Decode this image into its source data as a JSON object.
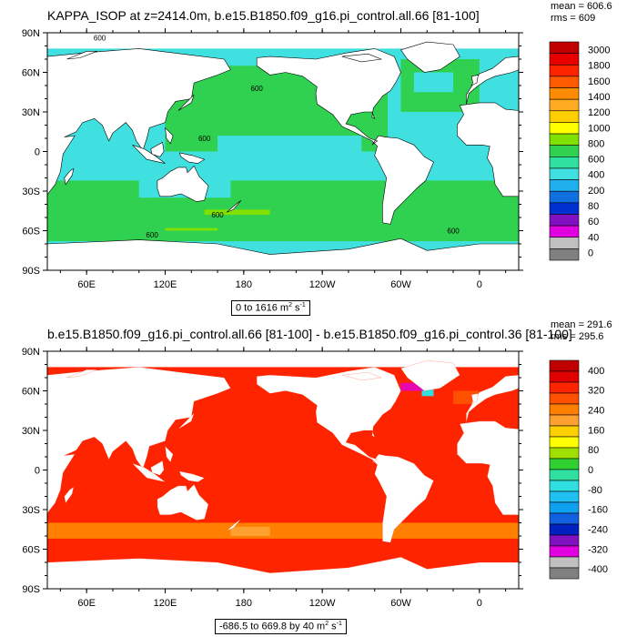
{
  "chart_data": [
    {
      "type": "heatmap",
      "title": "KAPPA_ISOP at z=2414.0m, b.e15.B1850.f09_g16.pi_control.all.66 [81-100]",
      "stats": "mean = 606.6\nrms = 609",
      "range_label": "0 to 1616 m",
      "units_exp": "2",
      "units_tail": " s",
      "units_tail_exp": "-1",
      "lat_ticks": [
        {
          "v": 90,
          "label": "90N"
        },
        {
          "v": 60,
          "label": "60N"
        },
        {
          "v": 30,
          "label": "30N"
        },
        {
          "v": 0,
          "label": "0"
        },
        {
          "v": -30,
          "label": "30S"
        },
        {
          "v": -60,
          "label": "60S"
        },
        {
          "v": -90,
          "label": "90S"
        }
      ],
      "lon_ticks": [
        {
          "v": 60,
          "label": "60E"
        },
        {
          "v": 120,
          "label": "120E"
        },
        {
          "v": 180,
          "label": "180"
        },
        {
          "v": 240,
          "label": "120W"
        },
        {
          "v": 300,
          "label": "60W"
        },
        {
          "v": 360,
          "label": "0"
        }
      ],
      "lon_range": [
        30,
        390
      ],
      "lat_range": [
        -90,
        90
      ],
      "colorbar_labels": [
        "3000",
        "1800",
        "1600",
        "1400",
        "1200",
        "1000",
        "800",
        "600",
        "400",
        "200",
        "80",
        "60",
        "40",
        "0"
      ],
      "colorbar_colors": [
        "#c00000",
        "#e80000",
        "#ff2400",
        "#ff5a00",
        "#ff8c00",
        "#ffaa20",
        "#ffd000",
        "#ffff00",
        "#80e000",
        "#30d050",
        "#30e0a0",
        "#40e0e0",
        "#20b0f0",
        "#1070e0",
        "#0030d0",
        "#8010c0",
        "#e000e0",
        "#c0c0c0",
        "#808080"
      ],
      "contour_labels": [
        "600",
        "600",
        "600",
        "600",
        "600",
        "600"
      ],
      "land_color": "#ffffff",
      "dominant_colors": {
        "pacific": "#30d050",
        "indian_tropics": "#40e0e0",
        "southern": "#30d050"
      }
    },
    {
      "type": "heatmap",
      "title": "b.e15.B1850.f09_g16.pi_control.all.66 [81-100] - b.e15.B1850.f09_g16.pi_control.36 [81-100]",
      "stats": "mean = 291.6\nrms = 295.6",
      "range_label": "-686.5 to 669.8 by 40 m",
      "units_exp": "2",
      "units_tail": " s",
      "units_tail_exp": "-1",
      "lat_ticks": [
        {
          "v": 90,
          "label": "90N"
        },
        {
          "v": 60,
          "label": "60N"
        },
        {
          "v": 30,
          "label": "30N"
        },
        {
          "v": 0,
          "label": "0"
        },
        {
          "v": -30,
          "label": "30S"
        },
        {
          "v": -60,
          "label": "60S"
        },
        {
          "v": -90,
          "label": "90S"
        }
      ],
      "lon_ticks": [
        {
          "v": 60,
          "label": "60E"
        },
        {
          "v": 120,
          "label": "120E"
        },
        {
          "v": 180,
          "label": "180"
        },
        {
          "v": 240,
          "label": "120W"
        },
        {
          "v": 300,
          "label": "60W"
        },
        {
          "v": 360,
          "label": "0"
        }
      ],
      "lon_range": [
        30,
        390
      ],
      "lat_range": [
        -90,
        90
      ],
      "colorbar_labels": [
        "400",
        "320",
        "240",
        "160",
        "80",
        "0",
        "-80",
        "-160",
        "-240",
        "-320",
        "-400"
      ],
      "colorbar_colors": [
        "#c00000",
        "#e00000",
        "#ff2400",
        "#ff5000",
        "#ff8000",
        "#ffa030",
        "#ffd000",
        "#ffff00",
        "#a0e000",
        "#30d030",
        "#30e0a0",
        "#30e0e0",
        "#20c0f0",
        "#10a0f0",
        "#1060e0",
        "#0020c0",
        "#8010c0",
        "#e000e0",
        "#c0c0c0",
        "#808080"
      ],
      "land_color": "#ffffff",
      "dominant_colors": {
        "ocean": "#ff2400",
        "southern_band": "#ff8000",
        "labrador": "#30e0e0"
      }
    }
  ]
}
